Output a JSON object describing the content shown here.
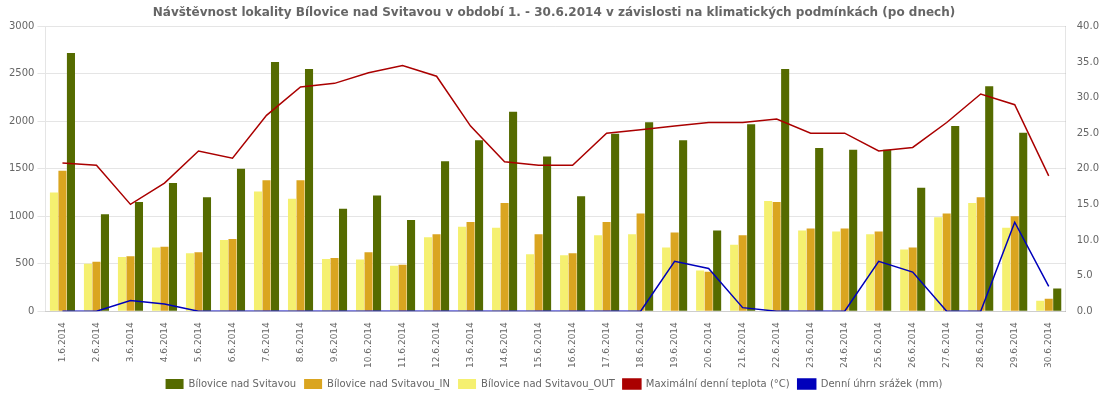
{
  "chart_data": {
    "type": "bar",
    "title": "Návštěvnost lokality Bílovice nad Svitavou v období 1. - 30.6.2014 v závislosti na klimatických podmínkách (po dnech)",
    "categories": [
      "1.6.2014",
      "2.6.2014",
      "3.6.2014",
      "4.6.2014",
      "5.6.2014",
      "6.6.2014",
      "7.6.2014",
      "8.6.2014",
      "9.6.2014",
      "10.6.2014",
      "11.6.2014",
      "12.6.2014",
      "13.6.2014",
      "14.6.2014",
      "15.6.2014",
      "16.6.2014",
      "17.6.2014",
      "18.6.2014",
      "19.6.2014",
      "20.6.2014",
      "21.6.2014",
      "22.6.2014",
      "23.6.2014",
      "24.6.2014",
      "25.6.2014",
      "26.6.2014",
      "27.6.2014",
      "28.6.2014",
      "29.6.2014",
      "30.6.2014"
    ],
    "series": [
      {
        "name": "Bílovice nad Svitavou",
        "type": "bar",
        "color": "#556B00",
        "values": [
          2720,
          1020,
          1150,
          1350,
          1200,
          1500,
          2625,
          2550,
          1080,
          1220,
          960,
          1580,
          1800,
          2100,
          1630,
          1210,
          1870,
          1990,
          1800,
          850,
          1970,
          2550,
          1720,
          1700,
          1700,
          1300,
          1950,
          2370,
          1880,
          240
        ]
      },
      {
        "name": "Bílovice nad Svitavou_IN",
        "type": "bar",
        "color": "#DAA520",
        "values": [
          1480,
          520,
          580,
          680,
          620,
          760,
          1380,
          1380,
          560,
          620,
          490,
          810,
          940,
          1140,
          810,
          610,
          940,
          1030,
          830,
          415,
          800,
          1150,
          870,
          870,
          840,
          670,
          1030,
          1200,
          1000,
          130
        ]
      },
      {
        "name": "Bílovice nad Svitavou_OUT",
        "type": "bar",
        "color": "#F5F070",
        "values": [
          1250,
          500,
          570,
          670,
          610,
          750,
          1260,
          1185,
          550,
          545,
          480,
          780,
          890,
          880,
          600,
          590,
          800,
          810,
          670,
          430,
          700,
          1160,
          850,
          840,
          810,
          650,
          990,
          1140,
          880,
          110
        ]
      },
      {
        "name": "Maximální denní teplota (°C)",
        "type": "line",
        "axis": "y2",
        "color": "#AA0000",
        "values": [
          20.8,
          20.5,
          15.0,
          18.0,
          22.5,
          21.5,
          27.5,
          31.5,
          32.0,
          33.5,
          34.5,
          33.0,
          26.0,
          21.0,
          20.5,
          20.5,
          25.0,
          25.5,
          26.0,
          26.5,
          26.5,
          27.0,
          25.0,
          25.0,
          22.5,
          23.0,
          26.5,
          30.5,
          29.0,
          19.0
        ]
      },
      {
        "name": "Denní úhrn srážek (mm)",
        "type": "line",
        "axis": "y2",
        "color": "#0000BB",
        "values": [
          0.0,
          0.0,
          1.5,
          1.0,
          0.0,
          0.0,
          0.0,
          0.0,
          0.0,
          0.0,
          0.0,
          0.0,
          0.0,
          0.0,
          0.0,
          0.0,
          0.0,
          0.0,
          7.0,
          6.0,
          0.5,
          0.0,
          0.0,
          0.0,
          7.0,
          5.5,
          0.0,
          0.0,
          12.5,
          3.5
        ]
      }
    ],
    "ylim": [
      0,
      3000
    ],
    "yticks": [
      0,
      500,
      1000,
      1500,
      2000,
      2500,
      3000
    ],
    "y2lim": [
      0.0,
      40.0
    ],
    "y2ticks": [
      {
        "value": 0,
        "label": "0.0"
      },
      {
        "value": 5,
        "label": "5.0"
      },
      {
        "value": 10,
        "label": "10.0"
      },
      {
        "value": 15,
        "label": "15.0"
      },
      {
        "value": 20,
        "label": "20.0"
      },
      {
        "value": 25,
        "label": "25.0"
      },
      {
        "value": 30,
        "label": "30.0"
      },
      {
        "value": 35,
        "label": "35.0"
      },
      {
        "value": 40,
        "label": "40.0"
      }
    ],
    "grid": true,
    "legend": "bottom"
  }
}
